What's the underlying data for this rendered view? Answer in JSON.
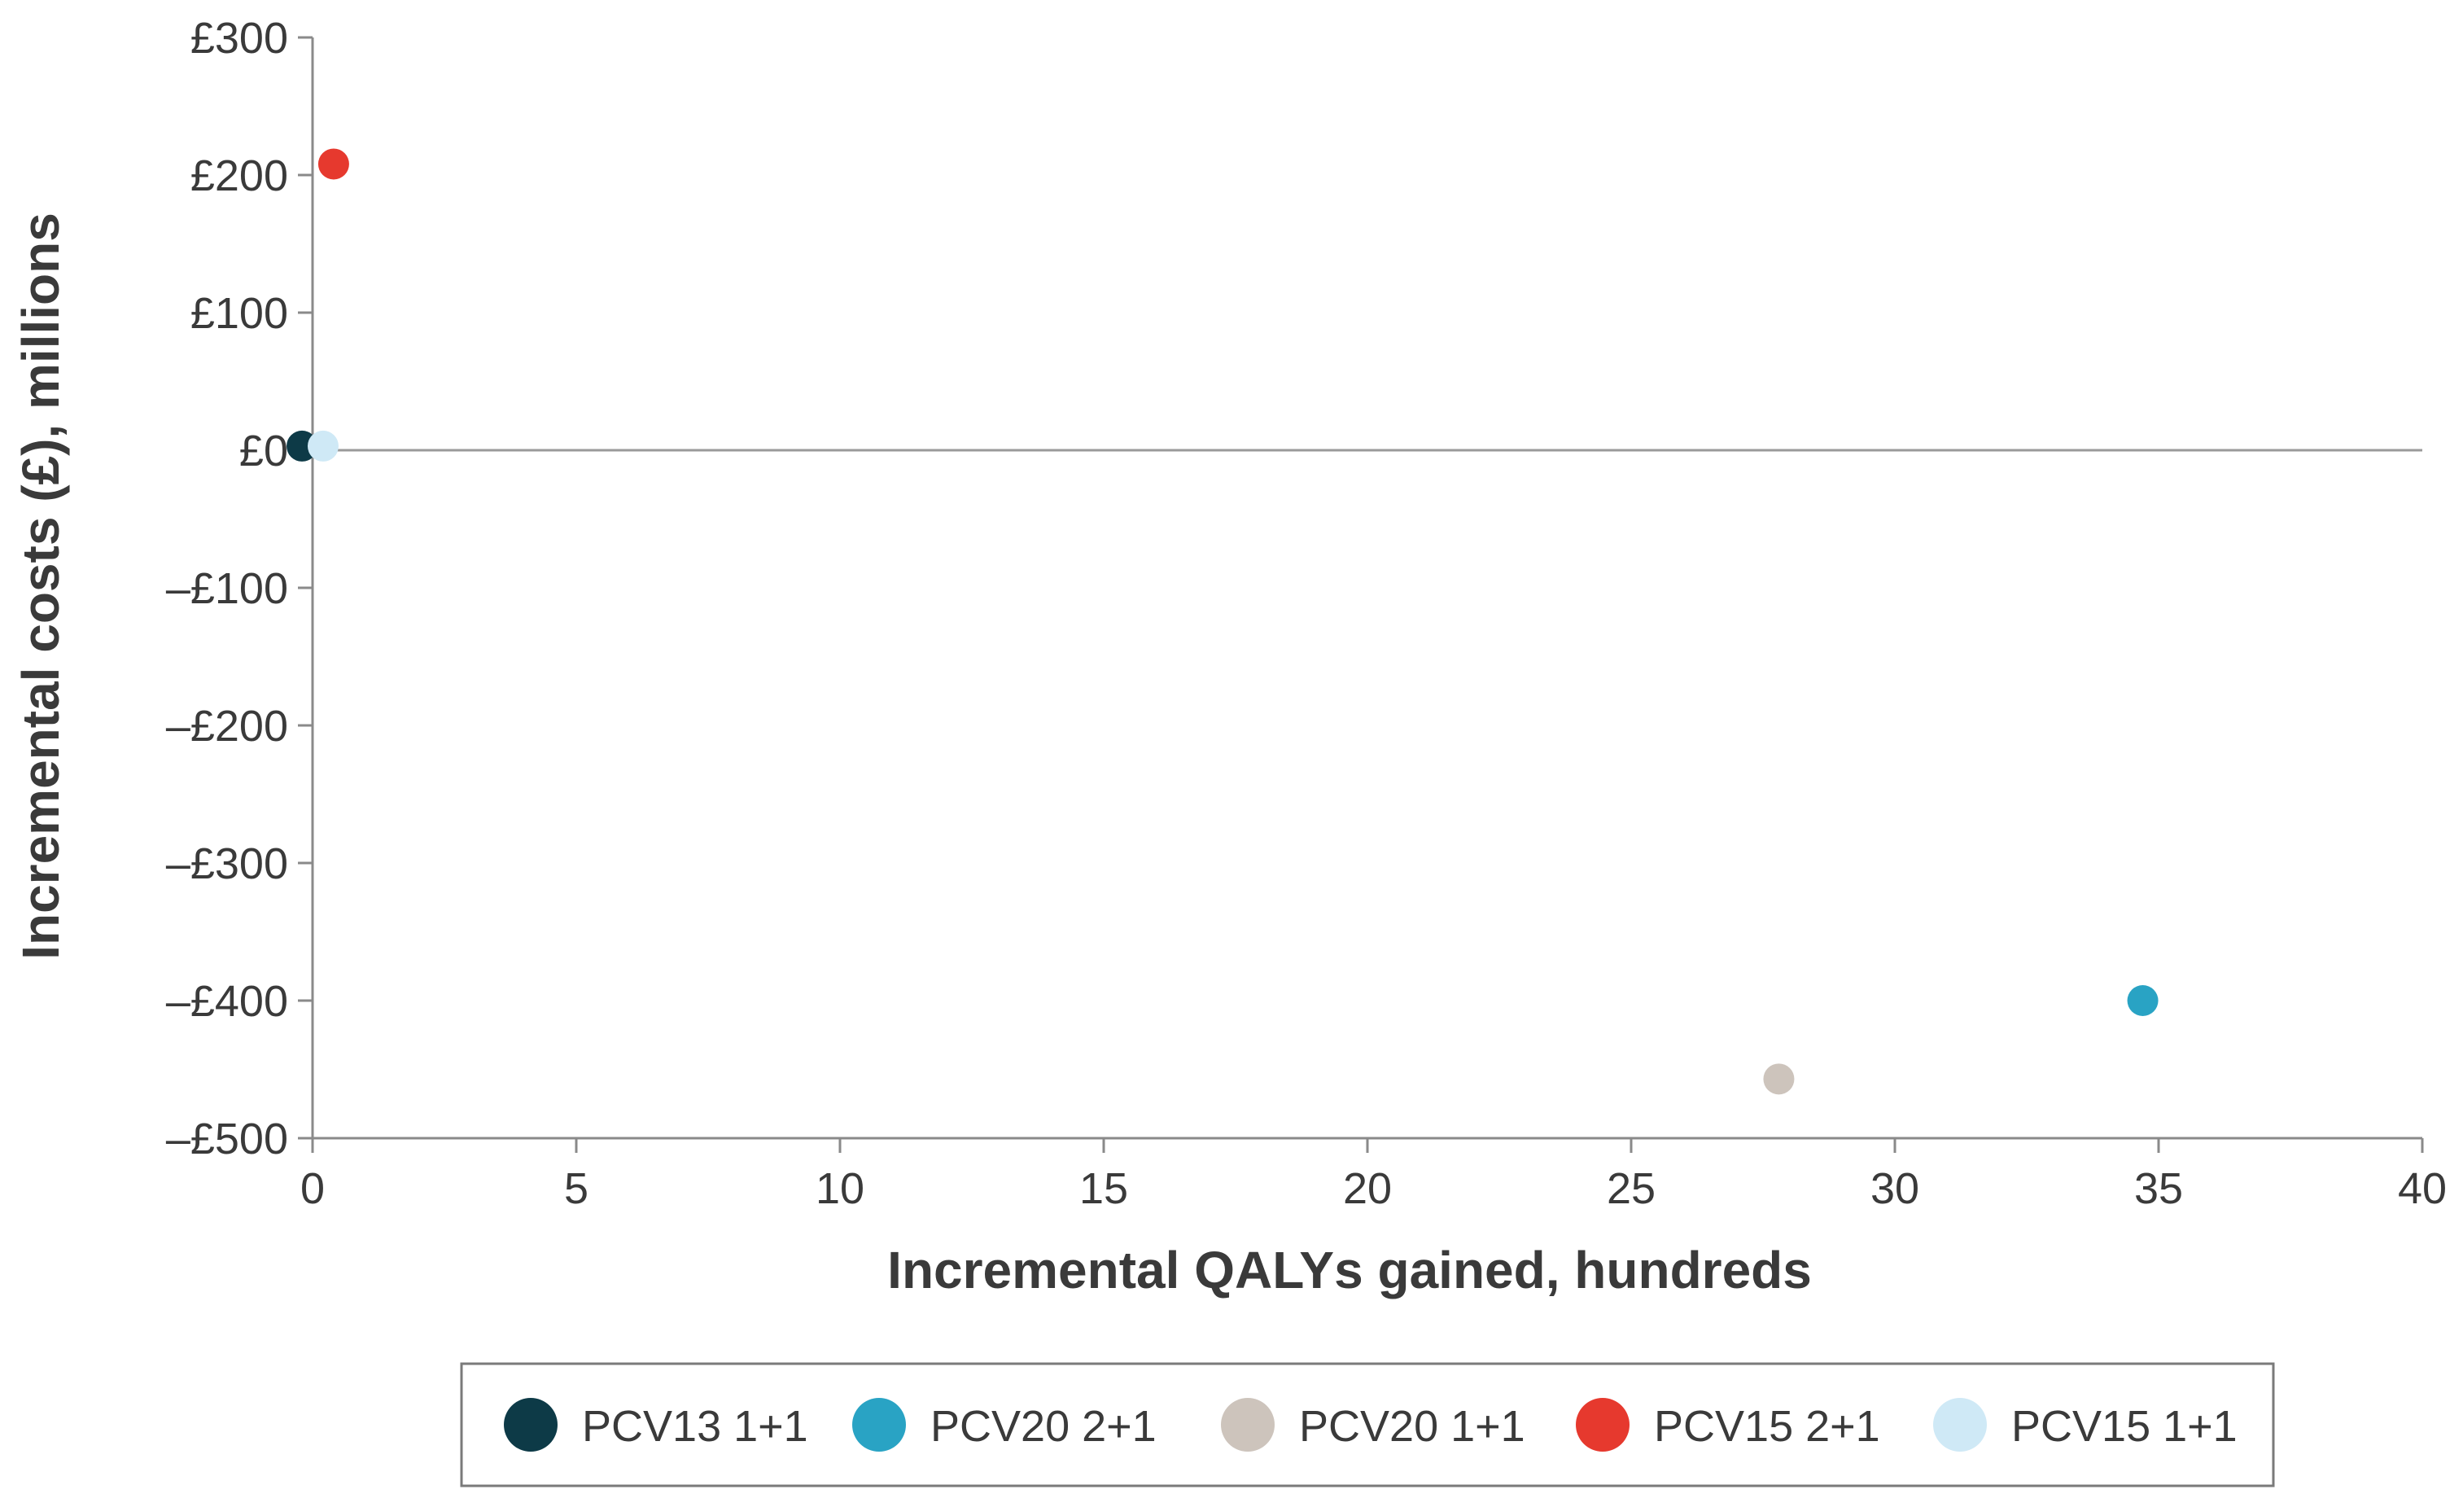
{
  "chart_data": {
    "type": "scatter",
    "title": "",
    "xlabel": "Incremental QALYs gained, hundreds",
    "ylabel": "Incremental costs (£), millions",
    "xlim": [
      0,
      40
    ],
    "ylim": [
      -500,
      300
    ],
    "x_ticks": [
      0,
      5,
      10,
      15,
      20,
      25,
      30,
      35,
      40
    ],
    "x_tick_labels": [
      "0",
      "5",
      "10",
      "15",
      "20",
      "25",
      "30",
      "35",
      "40"
    ],
    "y_ticks": [
      300,
      200,
      100,
      0,
      -100,
      -200,
      -300,
      -400,
      -500
    ],
    "y_tick_labels": [
      "£300",
      "£200",
      "£100",
      "£0",
      "–£100",
      "–£200",
      "–£300",
      "–£400",
      "–£500"
    ],
    "grid": false,
    "zero_line": true,
    "legend_position": "bottom",
    "series": [
      {
        "name": "PCV13 1+1",
        "color": "#0d3a47",
        "x": [
          -0.2
        ],
        "y": [
          3
        ]
      },
      {
        "name": "PCV20 2+1",
        "color": "#29a3c4",
        "x": [
          34.7
        ],
        "y": [
          -400
        ]
      },
      {
        "name": "PCV20 1+1",
        "color": "#cdc4bc",
        "x": [
          27.8
        ],
        "y": [
          -457
        ]
      },
      {
        "name": "PCV15 2+1",
        "color": "#e6392e",
        "x": [
          0.4
        ],
        "y": [
          208
        ]
      },
      {
        "name": "PCV15 1+1",
        "color": "#cfe9f6",
        "x": [
          0.2
        ],
        "y": [
          3
        ]
      }
    ]
  }
}
